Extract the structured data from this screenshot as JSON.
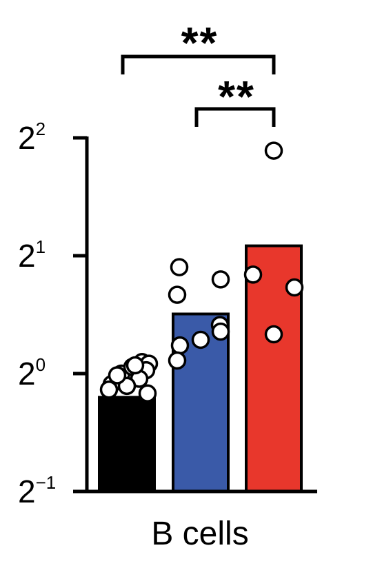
{
  "chart_data": {
    "type": "bar",
    "xlabel": "B cells",
    "ylabel": "",
    "yscale": "log2",
    "ylim": [
      0.5,
      4
    ],
    "yticks": [
      {
        "value": 0.5,
        "base": "2",
        "exp": "−1"
      },
      {
        "value": 1,
        "base": "2",
        "exp": "0"
      },
      {
        "value": 2,
        "base": "2",
        "exp": "1"
      },
      {
        "value": 4,
        "base": "2",
        "exp": "2"
      }
    ],
    "categories": [
      "",
      "",
      ""
    ],
    "values": [
      0.87,
      1.42,
      2.12
    ],
    "colors": [
      "#000000",
      "#3a5aa8",
      "#e8372c"
    ],
    "points": [
      [
        0.94,
        1.0,
        1.04,
        1.07,
        1.06,
        1.02,
        0.97,
        0.91,
        0.93,
        0.99,
        1.05,
        0.89
      ],
      [
        1.87,
        1.59,
        1.74,
        1.33,
        1.18,
        1.28,
        1.08,
        1.22
      ],
      [
        3.71,
        1.79,
        1.66,
        1.26
      ]
    ],
    "significance": [
      {
        "from": 0,
        "to": 2,
        "label": "**"
      },
      {
        "from": 1,
        "to": 2,
        "label": "**"
      }
    ],
    "grid": false,
    "legend": "none"
  }
}
